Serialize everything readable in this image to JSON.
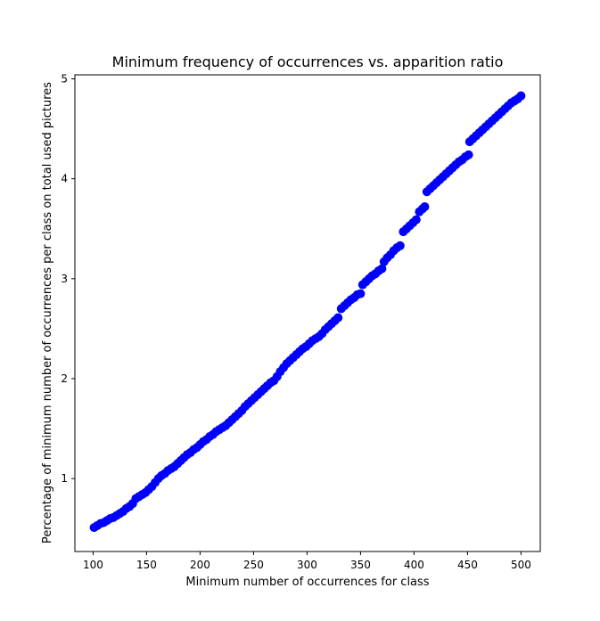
{
  "chart_data": {
    "type": "scatter",
    "title": "Minimum frequency of occurrences vs. apparition ratio",
    "xlabel": "Minimum number of occurrences for class",
    "ylabel": "Percentage of minimum number of occurrences per class on total used pictures",
    "xlim": [
      83,
      518
    ],
    "ylim": [
      0.27,
      5.04
    ],
    "xticks": [
      100,
      150,
      200,
      250,
      300,
      350,
      400,
      450,
      500
    ],
    "yticks": [
      1,
      2,
      3,
      4,
      5
    ],
    "grid": false,
    "marker_color": "#0000ff",
    "series": [
      {
        "points": [
          [
            101,
            0.51
          ],
          [
            104,
            0.53
          ],
          [
            107,
            0.55
          ],
          [
            110,
            0.56
          ],
          [
            113,
            0.58
          ],
          [
            116,
            0.6
          ],
          [
            119,
            0.61
          ],
          [
            122,
            0.63
          ],
          [
            125,
            0.65
          ],
          [
            128,
            0.67
          ],
          [
            131,
            0.7
          ],
          [
            134,
            0.72
          ],
          [
            137,
            0.75
          ],
          [
            140,
            0.8
          ],
          [
            143,
            0.82
          ],
          [
            146,
            0.84
          ],
          [
            149,
            0.86
          ],
          [
            152,
            0.89
          ],
          [
            155,
            0.92
          ],
          [
            158,
            0.96
          ],
          [
            161,
            1.0
          ],
          [
            164,
            1.03
          ],
          [
            167,
            1.05
          ],
          [
            170,
            1.08
          ],
          [
            173,
            1.1
          ],
          [
            176,
            1.12
          ],
          [
            179,
            1.15
          ],
          [
            182,
            1.18
          ],
          [
            185,
            1.21
          ],
          [
            188,
            1.24
          ],
          [
            191,
            1.26
          ],
          [
            194,
            1.29
          ],
          [
            197,
            1.31
          ],
          [
            200,
            1.34
          ],
          [
            203,
            1.37
          ],
          [
            206,
            1.39
          ],
          [
            209,
            1.42
          ],
          [
            212,
            1.44
          ],
          [
            215,
            1.47
          ],
          [
            218,
            1.49
          ],
          [
            221,
            1.51
          ],
          [
            224,
            1.53
          ],
          [
            227,
            1.56
          ],
          [
            230,
            1.59
          ],
          [
            233,
            1.62
          ],
          [
            236,
            1.65
          ],
          [
            239,
            1.68
          ],
          [
            242,
            1.72
          ],
          [
            245,
            1.75
          ],
          [
            248,
            1.78
          ],
          [
            251,
            1.81
          ],
          [
            254,
            1.84
          ],
          [
            257,
            1.87
          ],
          [
            260,
            1.9
          ],
          [
            263,
            1.93
          ],
          [
            266,
            1.96
          ],
          [
            269,
            1.98
          ],
          [
            272,
            2.02
          ],
          [
            275,
            2.07
          ],
          [
            278,
            2.11
          ],
          [
            281,
            2.15
          ],
          [
            284,
            2.18
          ],
          [
            287,
            2.21
          ],
          [
            290,
            2.24
          ],
          [
            293,
            2.27
          ],
          [
            296,
            2.3
          ],
          [
            299,
            2.32
          ],
          [
            302,
            2.35
          ],
          [
            305,
            2.38
          ],
          [
            308,
            2.4
          ],
          [
            311,
            2.42
          ],
          [
            314,
            2.45
          ],
          [
            317,
            2.49
          ],
          [
            320,
            2.52
          ],
          [
            323,
            2.55
          ],
          [
            326,
            2.58
          ],
          [
            329,
            2.61
          ],
          [
            332,
            2.7
          ],
          [
            335,
            2.73
          ],
          [
            338,
            2.76
          ],
          [
            341,
            2.79
          ],
          [
            344,
            2.81
          ],
          [
            347,
            2.84
          ],
          [
            350,
            2.85
          ],
          [
            352,
            2.94
          ],
          [
            355,
            2.97
          ],
          [
            358,
            3.0
          ],
          [
            361,
            3.03
          ],
          [
            364,
            3.05
          ],
          [
            367,
            3.08
          ],
          [
            370,
            3.1
          ],
          [
            372,
            3.17
          ],
          [
            375,
            3.21
          ],
          [
            378,
            3.24
          ],
          [
            381,
            3.28
          ],
          [
            384,
            3.31
          ],
          [
            387,
            3.33
          ],
          [
            390,
            3.47
          ],
          [
            393,
            3.5
          ],
          [
            396,
            3.53
          ],
          [
            399,
            3.56
          ],
          [
            402,
            3.59
          ],
          [
            405,
            3.67
          ],
          [
            408,
            3.7
          ],
          [
            410,
            3.72
          ],
          [
            412,
            3.87
          ],
          [
            415,
            3.9
          ],
          [
            418,
            3.93
          ],
          [
            421,
            3.96
          ],
          [
            424,
            3.99
          ],
          [
            427,
            4.02
          ],
          [
            430,
            4.05
          ],
          [
            433,
            4.08
          ],
          [
            436,
            4.11
          ],
          [
            439,
            4.14
          ],
          [
            442,
            4.17
          ],
          [
            445,
            4.19
          ],
          [
            448,
            4.22
          ],
          [
            451,
            4.24
          ],
          [
            452,
            4.37
          ],
          [
            455,
            4.4
          ],
          [
            458,
            4.43
          ],
          [
            461,
            4.46
          ],
          [
            464,
            4.49
          ],
          [
            467,
            4.52
          ],
          [
            470,
            4.55
          ],
          [
            473,
            4.58
          ],
          [
            476,
            4.61
          ],
          [
            479,
            4.64
          ],
          [
            482,
            4.67
          ],
          [
            485,
            4.7
          ],
          [
            488,
            4.73
          ],
          [
            491,
            4.76
          ],
          [
            494,
            4.78
          ],
          [
            497,
            4.8
          ],
          [
            500,
            4.83
          ]
        ]
      }
    ]
  }
}
